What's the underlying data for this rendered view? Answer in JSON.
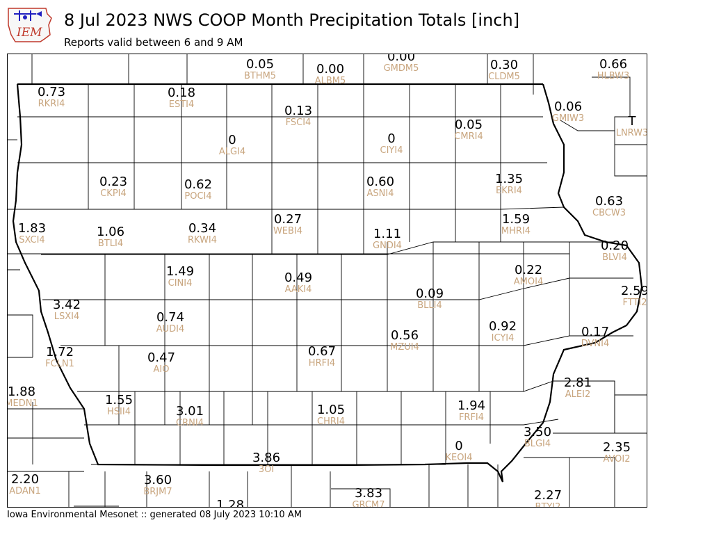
{
  "logo": {
    "text": "IEM"
  },
  "title": "8 Jul 2023 NWS COOP Month Precipitation Totals [inch]",
  "subtitle": "Reports valid between 6 and 9 AM",
  "footer": "Iowa Environmental Mesonet :: generated 08 July 2023 10:10 AM",
  "colors": {
    "value_text": "#000000",
    "station_id_text": "#c8a57e",
    "state_border": "#000000",
    "county_lines": "#000000"
  },
  "stations": [
    {
      "value": "0.05",
      "id": "BTHM5"
    },
    {
      "value": "0.00",
      "id": "ALBM5"
    },
    {
      "value": "0.00",
      "id": "GMDM5"
    },
    {
      "value": "0.30",
      "id": "CLDM5"
    },
    {
      "value": "0.66",
      "id": "HLBW3"
    },
    {
      "value": "0.73",
      "id": "RKRI4"
    },
    {
      "value": "0.18",
      "id": "ESTI4"
    },
    {
      "value": "0.13",
      "id": "FSCI4"
    },
    {
      "value": "0.06",
      "id": "GMIW3"
    },
    {
      "value": "T",
      "id": "LNRW3"
    },
    {
      "value": "0",
      "id": "ALGI4"
    },
    {
      "value": "0",
      "id": "CIYI4"
    },
    {
      "value": "0.05",
      "id": "CMRI4"
    },
    {
      "value": "0.23",
      "id": "CKPI4"
    },
    {
      "value": "0.62",
      "id": "POCI4"
    },
    {
      "value": "0.60",
      "id": "ASNI4"
    },
    {
      "value": "1.35",
      "id": "EKRI4"
    },
    {
      "value": "0.63",
      "id": "CBCW3"
    },
    {
      "value": "1.83",
      "id": "SXCI4"
    },
    {
      "value": "1.06",
      "id": "BTLI4"
    },
    {
      "value": "0.34",
      "id": "RKWI4"
    },
    {
      "value": "0.27",
      "id": "WEBI4"
    },
    {
      "value": "1.11",
      "id": "GNDI4"
    },
    {
      "value": "1.59",
      "id": "MHRI4"
    },
    {
      "value": "0.20",
      "id": "BLVI4"
    },
    {
      "value": "1.49",
      "id": "CINI4"
    },
    {
      "value": "0.49",
      "id": "AAKI4"
    },
    {
      "value": "0.22",
      "id": "AMOI4"
    },
    {
      "value": "3.42",
      "id": "LSXI4"
    },
    {
      "value": "0.09",
      "id": "BLLI4"
    },
    {
      "value": "2.59",
      "id": "FTTI2"
    },
    {
      "value": "0.74",
      "id": "AUDI4"
    },
    {
      "value": "0.92",
      "id": "ICYI4"
    },
    {
      "value": "0.17",
      "id": "DVNI4"
    },
    {
      "value": "0.56",
      "id": "MZUI4"
    },
    {
      "value": "1.72",
      "id": "FCLN1"
    },
    {
      "value": "0.47",
      "id": "AIO"
    },
    {
      "value": "0.67",
      "id": "HRFI4"
    },
    {
      "value": "2.81",
      "id": "ALEI2"
    },
    {
      "value": "1.88",
      "id": "MEDN1"
    },
    {
      "value": "1.55",
      "id": "HSII4"
    },
    {
      "value": "3.01",
      "id": "CRNI4"
    },
    {
      "value": "1.05",
      "id": "CHRI4"
    },
    {
      "value": "1.94",
      "id": "FRFI4"
    },
    {
      "value": "3.50",
      "id": "BLGI4"
    },
    {
      "value": "0",
      "id": "KEOI4"
    },
    {
      "value": "2.35",
      "id": "AVOI2"
    },
    {
      "value": "3.86",
      "id": "3OI"
    },
    {
      "value": "2.20",
      "id": "ADAN1"
    },
    {
      "value": "3.60",
      "id": "BRJM7"
    },
    {
      "value": "3.83",
      "id": "GRCM7"
    },
    {
      "value": "2.27",
      "id": "BTYI2"
    },
    {
      "value": "1.28",
      "id": ""
    }
  ]
}
